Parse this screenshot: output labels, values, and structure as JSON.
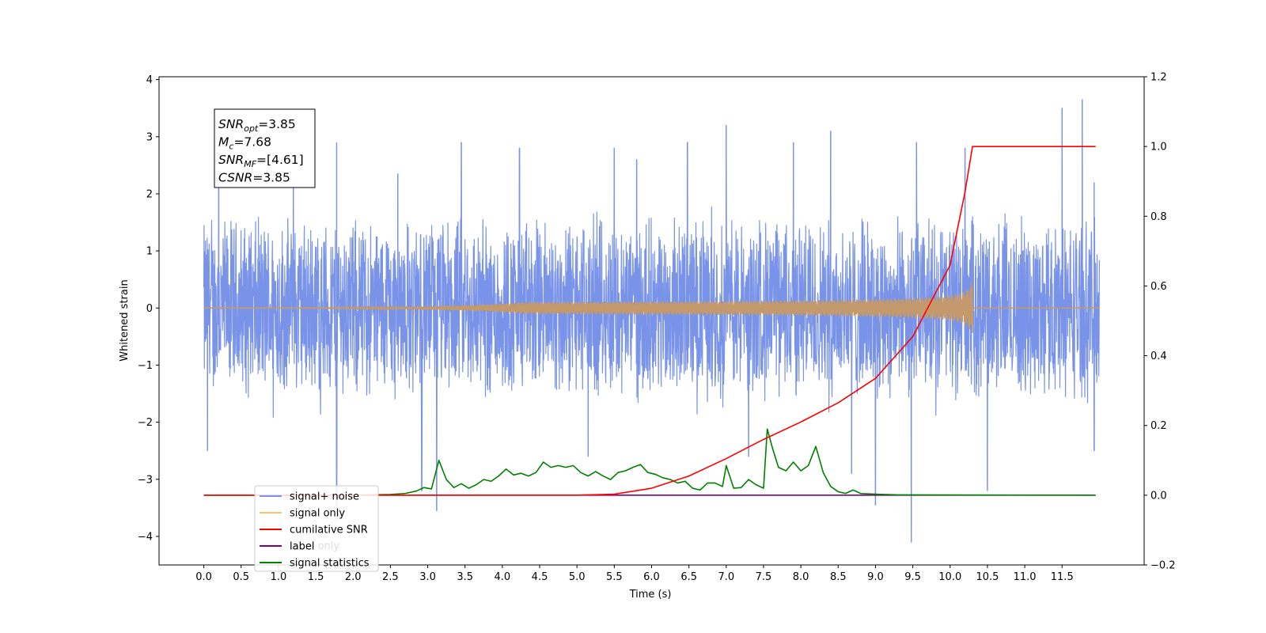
{
  "chart_data": {
    "type": "line",
    "xlabel": "Time (s)",
    "ylabel": "Whitened strain",
    "xlim": [
      -0.6,
      12.6
    ],
    "ylim": [
      -4.5,
      4.05
    ],
    "y2lim": [
      -0.2,
      1.2
    ],
    "x_ticks": [
      0.0,
      0.5,
      1.0,
      1.5,
      2.0,
      2.5,
      3.0,
      3.5,
      4.0,
      4.5,
      5.0,
      5.5,
      6.0,
      6.5,
      7.0,
      7.5,
      8.0,
      8.5,
      9.0,
      9.5,
      10.0,
      10.5,
      11.0,
      11.5
    ],
    "x_tick_labels": [
      "0.0",
      "0.5",
      "1.0",
      "1.5",
      "2.0",
      "2.5",
      "3.0",
      "3.5",
      "4.0",
      "4.5",
      "5.0",
      "5.5",
      "6.0",
      "6.5",
      "7.0",
      "7.5",
      "8.0",
      "8.5",
      "9.0",
      "9.5",
      "10.0",
      "10.5",
      "11.0",
      "11.5"
    ],
    "y_ticks": [
      4,
      3,
      2,
      1,
      0,
      -1,
      -2,
      -3,
      -4
    ],
    "y_tick_labels": [
      "4",
      "3",
      "2",
      "1",
      "0",
      "−1",
      "−2",
      "−3",
      "−4"
    ],
    "y2_ticks": [
      1.2,
      1.0,
      0.8,
      0.6,
      0.4,
      0.2,
      0.0,
      -0.2
    ],
    "y2_tick_labels": [
      "1.2",
      "1.0",
      "0.8",
      "0.6",
      "0.4",
      "0.2",
      "0.0",
      "−0.2"
    ],
    "grid": false,
    "legend_position": "lower-left",
    "stats_box": {
      "lines": [
        {
          "sym": "SNR",
          "sub": "opt",
          "val": "=3.85"
        },
        {
          "sym": "M",
          "sub": "c",
          "val": "=7.68"
        },
        {
          "sym": "SNR",
          "sub": "MF",
          "val": "=[4.61]"
        },
        {
          "sym": "CSNR",
          "sub": "",
          "val": "=3.85"
        }
      ]
    },
    "series": [
      {
        "name": "signal+ noise",
        "color": "#7893e8",
        "axis": "left",
        "t_range": [
          0.0,
          12.0
        ],
        "envelope_amplitude": 1.7,
        "peaks": [
          [
            0.2,
            2.15
          ],
          [
            1.2,
            2.6
          ],
          [
            1.78,
            2.9
          ],
          [
            2.6,
            2.35
          ],
          [
            3.45,
            2.9
          ],
          [
            4.23,
            2.8
          ],
          [
            5.5,
            2.8
          ],
          [
            5.8,
            2.6
          ],
          [
            6.48,
            2.9
          ],
          [
            7.0,
            3.2
          ],
          [
            7.9,
            2.9
          ],
          [
            8.4,
            3.1
          ],
          [
            9.55,
            2.9
          ],
          [
            10.2,
            2.8
          ],
          [
            11.5,
            3.5
          ],
          [
            11.77,
            3.65
          ],
          [
            11.93,
            2.2
          ]
        ],
        "troughs": [
          [
            0.05,
            -2.5
          ],
          [
            1.78,
            -3.7
          ],
          [
            2.92,
            -3.2
          ],
          [
            3.12,
            -3.55
          ],
          [
            5.15,
            -2.6
          ],
          [
            7.3,
            -2.6
          ],
          [
            8.68,
            -2.9
          ],
          [
            9.0,
            -3.45
          ],
          [
            9.48,
            -4.1
          ],
          [
            10.5,
            -3.2
          ],
          [
            11.93,
            -2.5
          ]
        ]
      },
      {
        "name": "signal only",
        "color": "#ffc266",
        "axis": "left",
        "chirp_end": 10.3,
        "max_amplitude": 0.45
      },
      {
        "name": "cumilative SNR",
        "color": "#ff0000",
        "axis": "right",
        "x": [
          0.0,
          5.0,
          5.5,
          6.0,
          6.5,
          7.0,
          7.5,
          8.0,
          8.5,
          9.0,
          9.5,
          10.0,
          10.2,
          10.3,
          11.95
        ],
        "y": [
          0.0,
          0.0,
          0.003,
          0.02,
          0.055,
          0.105,
          0.16,
          0.21,
          0.265,
          0.335,
          0.455,
          0.66,
          0.87,
          1.0,
          1.0
        ]
      },
      {
        "name": "label",
        "color": "#7f007f",
        "axis": "right",
        "x": [
          0.0,
          11.95
        ],
        "y": [
          0.0,
          0.0
        ]
      },
      {
        "name": "signal statistics",
        "color": "#008000",
        "axis": "right",
        "x": [
          0.0,
          2.0,
          2.5,
          2.7,
          2.85,
          2.95,
          3.05,
          3.15,
          3.25,
          3.35,
          3.45,
          3.55,
          3.65,
          3.75,
          3.85,
          3.95,
          4.05,
          4.15,
          4.25,
          4.35,
          4.45,
          4.55,
          4.65,
          4.75,
          4.85,
          4.95,
          5.05,
          5.15,
          5.25,
          5.35,
          5.45,
          5.55,
          5.65,
          5.75,
          5.85,
          5.95,
          6.05,
          6.15,
          6.25,
          6.35,
          6.45,
          6.55,
          6.65,
          6.75,
          6.85,
          6.95,
          7.0,
          7.1,
          7.2,
          7.3,
          7.4,
          7.5,
          7.55,
          7.62,
          7.7,
          7.8,
          7.9,
          8.0,
          8.1,
          8.2,
          8.3,
          8.4,
          8.5,
          8.6,
          8.7,
          8.8,
          9.0,
          9.3,
          11.95
        ],
        "y": [
          0.0,
          0.0,
          0.002,
          0.005,
          0.012,
          0.022,
          0.018,
          0.1,
          0.045,
          0.022,
          0.033,
          0.02,
          0.03,
          0.045,
          0.04,
          0.055,
          0.075,
          0.058,
          0.063,
          0.055,
          0.065,
          0.095,
          0.08,
          0.085,
          0.08,
          0.085,
          0.065,
          0.055,
          0.068,
          0.055,
          0.045,
          0.065,
          0.07,
          0.08,
          0.088,
          0.065,
          0.06,
          0.05,
          0.045,
          0.035,
          0.04,
          0.02,
          0.015,
          0.035,
          0.035,
          0.025,
          0.085,
          0.02,
          0.022,
          0.045,
          0.03,
          0.02,
          0.19,
          0.135,
          0.08,
          0.07,
          0.095,
          0.07,
          0.085,
          0.14,
          0.065,
          0.025,
          0.01,
          0.005,
          0.015,
          0.005,
          0.003,
          0.001,
          0.0
        ]
      }
    ],
    "legend_overlap_text": "label only"
  }
}
